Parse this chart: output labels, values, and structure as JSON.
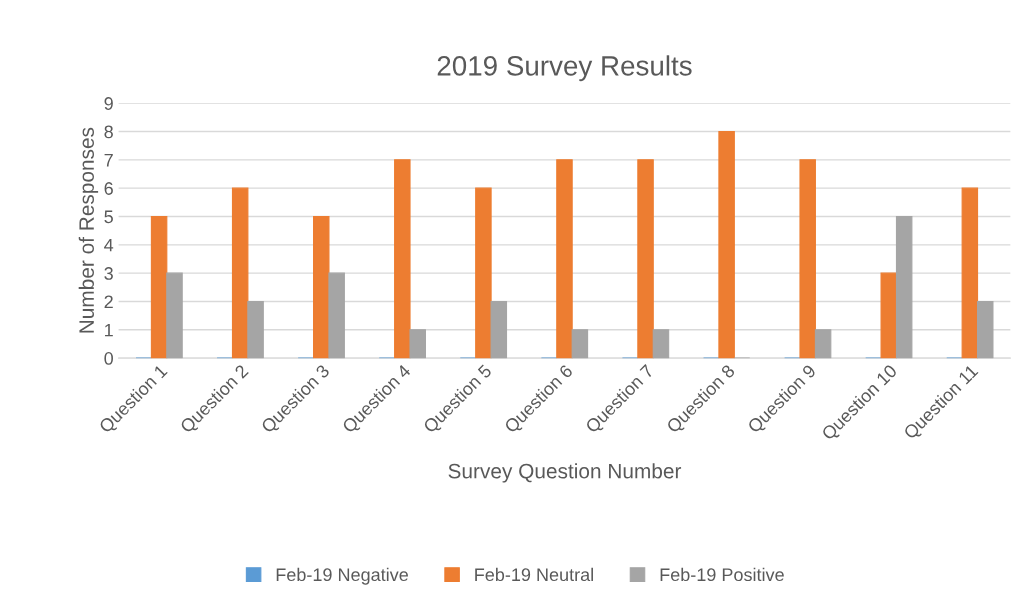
{
  "chart_data": {
    "type": "bar",
    "title": "2019 Survey Results",
    "xlabel": "Survey Question Number",
    "ylabel": "Number of Responses",
    "categories": [
      "Question 1",
      "Question 2",
      "Question 3",
      "Question 4",
      "Question 5",
      "Question 6",
      "Question 7",
      "Question 8",
      "Question 9",
      "Question 10",
      "Question 11"
    ],
    "series": [
      {
        "name": "Feb-19 Negative",
        "color": "#5b9bd5",
        "values": [
          0,
          0,
          0,
          0,
          0,
          0,
          0,
          0,
          0,
          0,
          0
        ]
      },
      {
        "name": "Feb-19 Neutral",
        "color": "#ed7d31",
        "values": [
          5,
          6,
          5,
          7,
          6,
          7,
          7,
          8,
          7,
          3,
          6
        ]
      },
      {
        "name": "Feb-19 Positive",
        "color": "#a5a5a5",
        "values": [
          3,
          2,
          3,
          1,
          2,
          1,
          1,
          0,
          1,
          5,
          2
        ]
      }
    ],
    "ylim": [
      0,
      9
    ],
    "yticks": [
      0,
      1,
      2,
      3,
      4,
      5,
      6,
      7,
      8,
      9
    ],
    "grid": "y",
    "legend": "bottom"
  }
}
